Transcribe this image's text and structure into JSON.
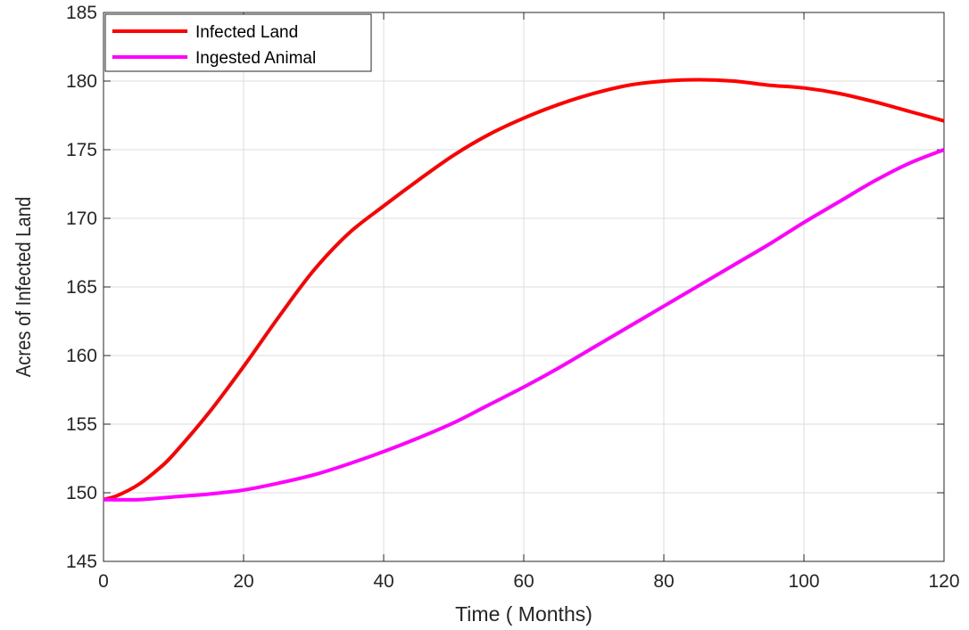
{
  "chart_data": {
    "type": "line",
    "title": "",
    "xlabel": "Time ( Months)",
    "ylabel": "Acres of Infected Land",
    "xlim": [
      0,
      120
    ],
    "ylim": [
      145,
      185
    ],
    "xticks": [
      0,
      20,
      40,
      60,
      80,
      100,
      120
    ],
    "yticks": [
      145,
      150,
      155,
      160,
      165,
      170,
      175,
      180,
      185
    ],
    "grid": true,
    "legend_position": "top-left",
    "series": [
      {
        "name": "Infected Land",
        "color": "#ff0000",
        "x": [
          0,
          2,
          5,
          8,
          10,
          15,
          20,
          25,
          30,
          35,
          40,
          45,
          50,
          55,
          60,
          65,
          70,
          75,
          80,
          85,
          90,
          95,
          100,
          105,
          110,
          115,
          120
        ],
        "y": [
          149.5,
          149.8,
          150.6,
          151.8,
          152.8,
          155.8,
          159.2,
          162.8,
          166.2,
          168.9,
          170.9,
          172.8,
          174.6,
          176.1,
          177.3,
          178.3,
          179.1,
          179.7,
          180.0,
          180.1,
          180.0,
          179.7,
          179.5,
          179.1,
          178.5,
          177.8,
          177.1
        ]
      },
      {
        "name": "Ingested Animal",
        "color": "#ff00ff",
        "x": [
          0,
          5,
          10,
          15,
          20,
          25,
          30,
          35,
          40,
          45,
          50,
          55,
          60,
          65,
          70,
          75,
          80,
          85,
          90,
          95,
          100,
          105,
          110,
          115,
          120
        ],
        "y": [
          149.5,
          149.5,
          149.7,
          149.9,
          150.2,
          150.7,
          151.3,
          152.1,
          153.0,
          154.0,
          155.1,
          156.4,
          157.7,
          159.1,
          160.6,
          162.1,
          163.6,
          165.1,
          166.6,
          168.1,
          169.7,
          171.2,
          172.7,
          174.0,
          175.0
        ]
      }
    ]
  }
}
